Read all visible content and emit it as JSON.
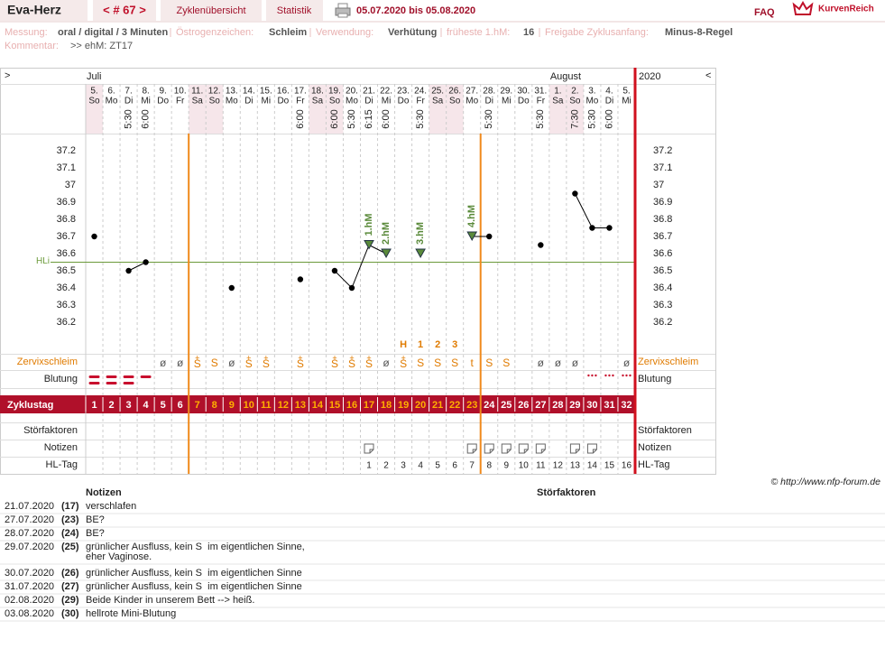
{
  "header": {
    "app": "Eva-Herz",
    "cycle": "< # 67 >",
    "tabs": [
      "Zyklenübersicht",
      "Statistik"
    ],
    "range": "05.07.2020 bis 05.08.2020",
    "faq": "FAQ",
    "brand": "KurvenReich"
  },
  "info": {
    "items": [
      {
        "label": "Messung:",
        "value": "oral / digital / 3 Minuten"
      },
      {
        "label": "Östrogenzeichen:",
        "value": "Schleim"
      },
      {
        "label": "Verwendung:",
        "value": "Verhütung"
      },
      {
        "label": "früheste 1.hM:",
        "value": "16"
      },
      {
        "label": "Freigabe Zyklusanfang:",
        "value": "Minus-8-Regel"
      }
    ],
    "comment_label": "Kommentar:",
    "comment": ">> ehM: ZT17"
  },
  "chart_data": {
    "type": "line",
    "nav_left": ">",
    "nav_right": "<",
    "year": "2020",
    "month_labels": [
      "Juli",
      null,
      null,
      null,
      null,
      null,
      null,
      null,
      null,
      null,
      null,
      null,
      null,
      null,
      null,
      null,
      null,
      null,
      null,
      null,
      null,
      null,
      null,
      null,
      null,
      null,
      null,
      "August",
      null,
      null,
      null,
      null
    ],
    "categories": [
      "5.",
      "6.",
      "7.",
      "8.",
      "9.",
      "10.",
      "11.",
      "12.",
      "13.",
      "14.",
      "15.",
      "16.",
      "17.",
      "18.",
      "19.",
      "20.",
      "21.",
      "22.",
      "23.",
      "24.",
      "25.",
      "26.",
      "27.",
      "28.",
      "29.",
      "30.",
      "31.",
      "1.",
      "2.",
      "3.",
      "4.",
      "5."
    ],
    "weekdays": [
      "So",
      "Mo",
      "Di",
      "Mi",
      "Do",
      "Fr",
      "Sa",
      "So",
      "Mo",
      "Di",
      "Mi",
      "Do",
      "Fr",
      "Sa",
      "So",
      "Mo",
      "Di",
      "Mi",
      "Do",
      "Fr",
      "Sa",
      "So",
      "Mo",
      "Di",
      "Mi",
      "Do",
      "Fr",
      "Sa",
      "So",
      "Mo",
      "Di",
      "Mi"
    ],
    "times": [
      null,
      null,
      "5:30",
      "6:00",
      null,
      null,
      null,
      null,
      null,
      null,
      null,
      null,
      "6:00",
      null,
      "6:00",
      "5:30",
      "6:15",
      "6:00",
      null,
      "5:30",
      null,
      null,
      null,
      "5:30",
      null,
      null,
      "5:30",
      null,
      "7:30",
      "5:30",
      "6:00",
      null
    ],
    "series": [
      {
        "color": "#000000",
        "values": [
          36.7,
          null,
          36.5,
          36.55,
          null,
          null,
          null,
          null,
          36.4,
          null,
          null,
          null,
          36.45,
          null,
          36.5,
          36.4,
          36.65,
          36.6,
          null,
          36.6,
          null,
          null,
          36.7,
          36.7,
          null,
          null,
          36.65,
          null,
          36.95,
          36.75,
          36.75,
          null
        ]
      }
    ],
    "hm_labels": [
      null,
      null,
      null,
      null,
      null,
      null,
      null,
      null,
      null,
      null,
      null,
      null,
      null,
      null,
      null,
      null,
      "1.hM",
      "2.hM",
      null,
      "3.hM",
      null,
      null,
      "4.hM",
      null,
      null,
      null,
      null,
      null,
      null,
      null,
      null,
      null
    ],
    "hm_color": "#5a8a3a",
    "ylim": [
      36.0,
      37.3
    ],
    "yticks": [
      36.2,
      36.3,
      36.4,
      36.5,
      36.6,
      36.7,
      36.8,
      36.9,
      37,
      37.1,
      37.2
    ],
    "grid": false,
    "hl": {
      "label": "HLi",
      "value": 36.55,
      "color": "#6b9a3a"
    },
    "row_labels": {
      "mucus": "Zervixschleim",
      "bleeding": "Blutung",
      "cycle_day": "Zyklustag",
      "disturbances": "Störfaktoren",
      "notes": "Notizen",
      "hl_day": "HL-Tag"
    },
    "peak_labels": [
      null,
      null,
      null,
      null,
      null,
      null,
      null,
      null,
      null,
      null,
      null,
      null,
      null,
      null,
      null,
      null,
      null,
      null,
      "H",
      "1",
      "2",
      "3",
      null,
      null,
      null,
      null,
      null,
      null,
      null,
      null,
      null,
      null
    ],
    "mucus": [
      null,
      null,
      null,
      null,
      "ø",
      "ø",
      {
        "sign": "S",
        "mark": "+"
      },
      "S",
      "ø",
      {
        "sign": "S",
        "mark": "+"
      },
      {
        "sign": "S",
        "mark": "+"
      },
      null,
      {
        "sign": "S",
        "mark": "+"
      },
      null,
      {
        "sign": "S",
        "mark": "+"
      },
      {
        "sign": "S",
        "mark": "+"
      },
      {
        "sign": "S",
        "mark": "+"
      },
      "ø",
      {
        "sign": "S",
        "mark": "+"
      },
      "S",
      "S",
      "S",
      "t",
      "S",
      "S",
      null,
      "ø",
      "ø",
      "ø",
      null,
      null,
      "ø"
    ],
    "cycle_days": [
      1,
      2,
      3,
      4,
      5,
      6,
      7,
      8,
      9,
      10,
      11,
      12,
      13,
      14,
      15,
      16,
      17,
      18,
      19,
      20,
      21,
      22,
      23,
      24,
      25,
      26,
      27,
      28,
      29,
      30,
      31,
      32
    ],
    "hl_days": [
      null,
      null,
      null,
      null,
      null,
      null,
      null,
      null,
      null,
      null,
      null,
      null,
      null,
      null,
      null,
      null,
      1,
      2,
      3,
      4,
      5,
      6,
      7,
      8,
      9,
      10,
      11,
      12,
      13,
      14,
      15,
      16
    ]
  },
  "credit": "© http://www.nfp-forum.de",
  "notes": {
    "headers": [
      "Notizen",
      "Störfaktoren"
    ],
    "rows": [
      {
        "date": "21.07.2020",
        "day": "(17)",
        "text": [
          "verschlafen"
        ]
      },
      {
        "date": "27.07.2020",
        "day": "(23)",
        "text": [
          "BE?"
        ]
      },
      {
        "date": "28.07.2020",
        "day": "(24)",
        "text": [
          "BE?"
        ]
      },
      {
        "date": "29.07.2020",
        "day": "(25)",
        "text": [
          "grünlicher Ausfluss, kein S  im eigentlichen Sinne,",
          "eher Vaginose."
        ]
      },
      {
        "date": "30.07.2020",
        "day": "(26)",
        "text": [
          "grünlicher Ausfluss, kein S  im eigentlichen Sinne"
        ]
      },
      {
        "date": "31.07.2020",
        "day": "(27)",
        "text": [
          "grünlicher Ausfluss, kein S  im eigentlichen Sinne"
        ]
      },
      {
        "date": "02.08.2020",
        "day": "(29)",
        "text": [
          "Beide Kinder in unserem Bett --> heiß."
        ]
      },
      {
        "date": "03.08.2020",
        "day": "(30)",
        "text": [
          "hellrote Mini-Blutung"
        ]
      }
    ]
  }
}
